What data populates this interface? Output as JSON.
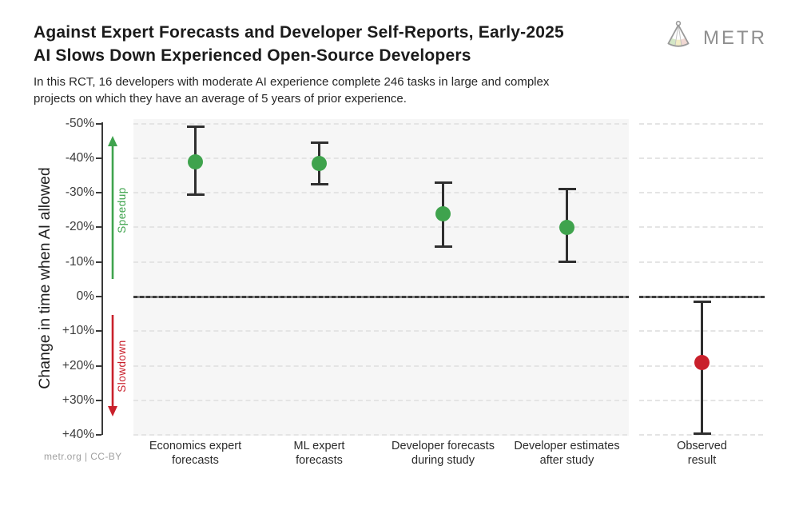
{
  "header": {
    "title_line1": "Against Expert Forecasts and Developer Self-Reports, Early-2025",
    "title_line2": "AI Slows Down Experienced Open-Source Developers",
    "subtitle_line1": "In this RCT, 16 developers with moderate AI experience complete 246 tasks in large and complex",
    "subtitle_line2": "projects on which they have an average of 5 years of prior experience.",
    "logo_text": "METR"
  },
  "footer": {
    "credit": "metr.org  |  CC-BY"
  },
  "chart_data": {
    "type": "scatter",
    "title": "Against Expert Forecasts and Developer Self-Reports, Early-2025 AI Slows Down Experienced Open-Source Developers",
    "ylabel": "Change in time when AI allowed",
    "y_axis": {
      "unit": "percent change in completion time",
      "inverted": true,
      "ylim": [
        -50,
        40
      ],
      "ticks": [
        -50,
        -40,
        -30,
        -20,
        -10,
        0,
        10,
        20,
        30,
        40
      ],
      "tick_labels": [
        "-50%",
        "-40%",
        "-30%",
        "-20%",
        "-10%",
        "0%",
        "+10%",
        "+20%",
        "+30%",
        "+40%"
      ],
      "grid": "dashed",
      "zero_line": 0
    },
    "annotations": [
      {
        "text": "Speedup",
        "direction": "up",
        "color": "#3fa34d"
      },
      {
        "text": "Slowdown",
        "direction": "down",
        "color": "#c9202b"
      }
    ],
    "colors": {
      "forecast_green": "#3fa34d",
      "observed_red": "#c9202b"
    },
    "points": [
      {
        "category": "Economics expert\nforecasts",
        "group": "forecast",
        "value": -39,
        "ci": [
          -49,
          -29.5
        ],
        "color": "#3fa34d"
      },
      {
        "category": "ML expert\nforecasts",
        "group": "forecast",
        "value": -38.5,
        "ci": [
          -44.5,
          -32.5
        ],
        "color": "#3fa34d"
      },
      {
        "category": "Developer forecasts\nduring study",
        "group": "forecast",
        "value": -24,
        "ci": [
          -33,
          -14.5
        ],
        "color": "#3fa34d"
      },
      {
        "category": "Developer estimates\nafter study",
        "group": "forecast",
        "value": -20,
        "ci": [
          -31,
          -10
        ],
        "color": "#3fa34d"
      },
      {
        "category": "Observed\nresult",
        "group": "observed",
        "value": 19,
        "ci": [
          1.5,
          39.5
        ],
        "color": "#c9202b"
      }
    ]
  }
}
